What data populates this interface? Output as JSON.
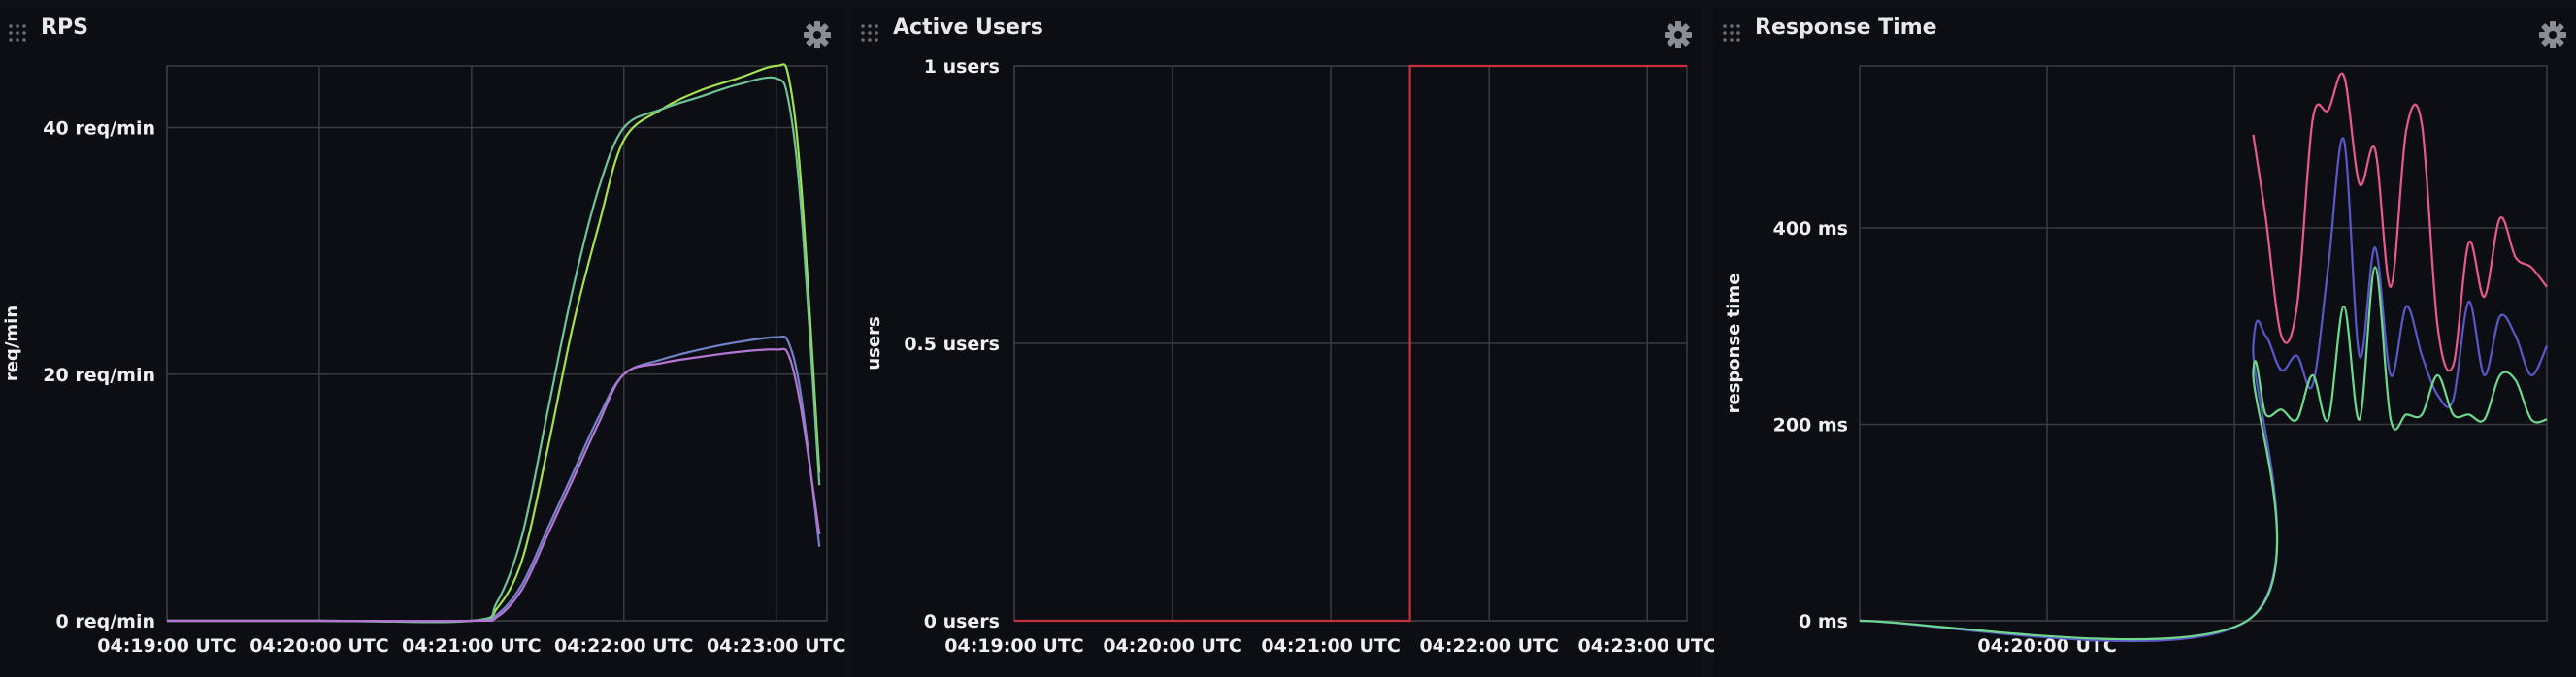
{
  "panels": [
    {
      "title": "RPS",
      "icons": {
        "drag": "drag-handle-icon",
        "settings": "gear-icon"
      }
    },
    {
      "title": "Active Users",
      "icons": {
        "drag": "drag-handle-icon",
        "settings": "gear-icon"
      }
    },
    {
      "title": "Response Time",
      "icons": {
        "drag": "drag-handle-icon",
        "settings": "gear-icon"
      }
    }
  ],
  "chart_data": [
    {
      "type": "line",
      "title": "RPS",
      "ylabel": "req/min",
      "xlabel": "",
      "grid": true,
      "legend": "none",
      "xlim": [
        "04:19:00",
        "04:23:20"
      ],
      "ylim": [
        0,
        45
      ],
      "x_tick_labels": [
        "04:19:00 UTC",
        "04:20:00 UTC",
        "04:21:00 UTC",
        "04:22:00 UTC",
        "04:23:00 UTC"
      ],
      "y_tick_labels": [
        "0  req/min",
        "20  req/min",
        "40  req/min"
      ],
      "y_ticks": [
        0,
        20,
        40
      ],
      "x": [
        "04:19:00",
        "04:20:00",
        "04:21:00",
        "04:21:10",
        "04:21:20",
        "04:21:30",
        "04:21:40",
        "04:21:50",
        "04:22:00",
        "04:22:15",
        "04:22:30",
        "04:22:45",
        "04:23:00",
        "04:23:05",
        "04:23:10",
        "04:23:17"
      ],
      "series": [
        {
          "color": "#a3e04d",
          "values": [
            0,
            0,
            0,
            1,
            5,
            14,
            24,
            32,
            39,
            41.5,
            43,
            44,
            45,
            44,
            35,
            12
          ]
        },
        {
          "color": "#6fc495",
          "values": [
            0,
            0,
            0,
            1.5,
            7,
            17,
            27,
            35,
            40,
            41.5,
            42.5,
            43.5,
            44,
            42,
            33,
            11
          ]
        },
        {
          "color": "#7383c9",
          "values": [
            0,
            0,
            0,
            0.5,
            3,
            7.5,
            12,
            16.5,
            20,
            21.2,
            22,
            22.6,
            23,
            22.5,
            18,
            6
          ]
        },
        {
          "color": "#b476d2",
          "values": [
            0,
            0,
            0,
            0.3,
            2.6,
            7,
            11.5,
            16,
            20,
            20.9,
            21.4,
            21.8,
            22,
            21.5,
            17,
            7
          ]
        }
      ]
    },
    {
      "type": "line",
      "title": "Active Users",
      "ylabel": "users",
      "xlabel": "",
      "grid": true,
      "legend": "none",
      "xlim": [
        "04:19:00",
        "04:23:15"
      ],
      "ylim": [
        0,
        1
      ],
      "x_tick_labels": [
        "04:19:00 UTC",
        "04:20:00 UTC",
        "04:21:00 UTC",
        "04:22:00 UTC",
        "04:23:00 UTC"
      ],
      "y_tick_labels": [
        "0  users",
        "0.5  users",
        "1  users"
      ],
      "y_ticks": [
        0,
        0.5,
        1
      ],
      "x": [
        "04:19:00",
        "04:21:30",
        "04:21:30",
        "04:23:15"
      ],
      "series": [
        {
          "color": "#c7303e",
          "values": [
            0,
            0,
            1,
            1
          ]
        }
      ]
    },
    {
      "type": "line",
      "title": "Response Time",
      "ylabel": "response time",
      "xlabel": "",
      "grid": true,
      "legend": "none",
      "xlim": [
        "04:19:00",
        "04:22:40"
      ],
      "ylim": [
        0,
        565
      ],
      "x_tick_labels": [
        "04:20:00 UTC"
      ],
      "y_tick_labels": [
        "0  ms",
        "200  ms",
        "400  ms"
      ],
      "y_ticks": [
        0,
        200,
        400
      ],
      "x": [
        "04:19:00",
        "04:21:04",
        "04:21:06",
        "04:21:10",
        "04:21:15",
        "04:21:20",
        "04:21:25",
        "04:21:30",
        "04:21:35",
        "04:21:40",
        "04:21:45",
        "04:21:50",
        "04:21:55",
        "04:22:00",
        "04:22:05",
        "04:22:10",
        "04:22:15",
        "04:22:20",
        "04:22:25",
        "04:22:30",
        "04:22:35",
        "04:22:40"
      ],
      "series": [
        {
          "color": "#e85a8b",
          "values": [
            null,
            null,
            495,
            410,
            290,
            320,
            510,
            520,
            555,
            445,
            480,
            340,
            500,
            505,
            300,
            260,
            385,
            330,
            410,
            370,
            360,
            340
          ]
        },
        {
          "color": "#5a58c8",
          "values": [
            0,
            0,
            280,
            290,
            255,
            270,
            240,
            360,
            490,
            270,
            380,
            250,
            320,
            270,
            230,
            225,
            325,
            250,
            310,
            290,
            250,
            280
          ]
        },
        {
          "color": "#6fd88e",
          "values": [
            0,
            0,
            255,
            210,
            215,
            205,
            250,
            205,
            320,
            205,
            360,
            205,
            210,
            210,
            250,
            210,
            210,
            205,
            250,
            245,
            205,
            205
          ]
        }
      ]
    }
  ]
}
